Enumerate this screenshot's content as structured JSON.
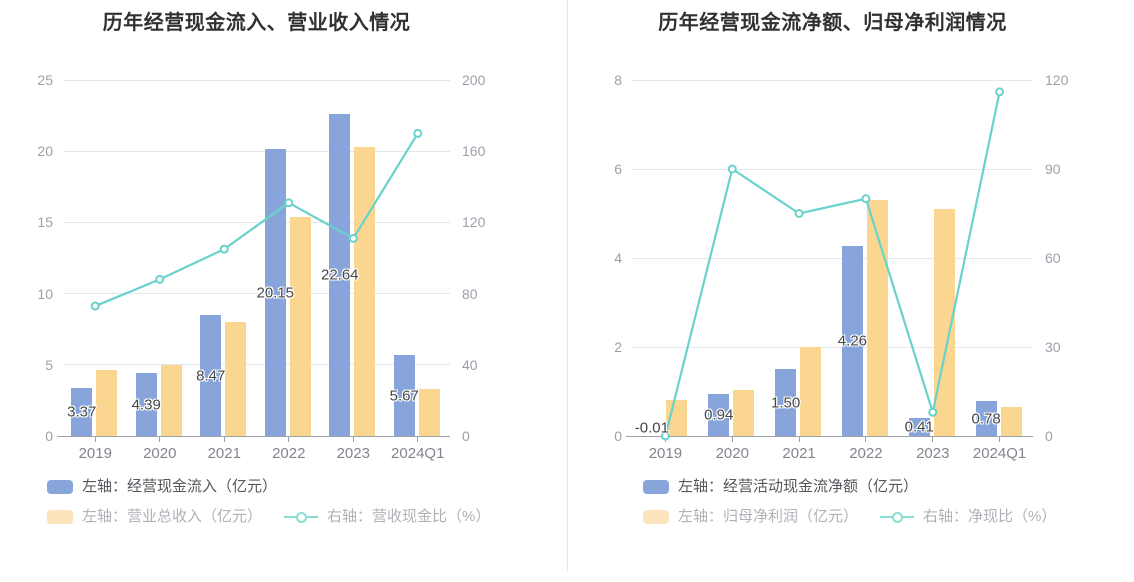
{
  "page": {
    "background": "#ffffff",
    "divider_color": "#e9e9e9"
  },
  "chart_data": [
    {
      "type": "bar+line",
      "title": "历年经营现金流入、营业收入情况",
      "categories": [
        "2019",
        "2020",
        "2021",
        "2022",
        "2023",
        "2024Q1"
      ],
      "left_axis": {
        "min": 0,
        "max": 25,
        "ticks": [
          0,
          5,
          10,
          15,
          20,
          25
        ]
      },
      "right_axis": {
        "min": 0,
        "max": 200,
        "ticks": [
          0,
          40,
          80,
          120,
          160,
          200
        ]
      },
      "grid": true,
      "legend_position": "bottom-left",
      "series": [
        {
          "kind": "bar",
          "axis": "left",
          "name": "左轴：经营现金流入（亿元）",
          "color": "#87a5db",
          "values": [
            3.37,
            4.39,
            8.47,
            20.15,
            22.64,
            5.67
          ],
          "value_labels": [
            "3.37",
            "4.39",
            "8.47",
            "20.15",
            "22.64",
            "5.67"
          ]
        },
        {
          "kind": "bar",
          "axis": "left",
          "name": "左轴：营业总收入（亿元）",
          "color": "#fbd690",
          "legend_color": "#fce4bd",
          "values": [
            4.6,
            5.0,
            8.0,
            15.35,
            20.3,
            3.3
          ]
        },
        {
          "kind": "line",
          "axis": "right",
          "name": "右轴：营收现金比（%）",
          "color": "#68d2cb",
          "legend_color": "#8cdcd6",
          "values": [
            73,
            88,
            105,
            131,
            111,
            170
          ]
        }
      ]
    },
    {
      "type": "bar+line",
      "title": "历年经营现金流净额、归母净利润情况",
      "categories": [
        "2019",
        "2020",
        "2021",
        "2022",
        "2023",
        "2024Q1"
      ],
      "left_axis": {
        "min": 0,
        "max": 8,
        "ticks": [
          0,
          2,
          4,
          6,
          8
        ]
      },
      "right_axis": {
        "min": 0,
        "max": 120,
        "ticks": [
          0,
          30,
          60,
          90,
          120
        ]
      },
      "grid": true,
      "legend_position": "bottom-left",
      "series": [
        {
          "kind": "bar",
          "axis": "left",
          "name": "左轴：经营活动现金流净额（亿元）",
          "color": "#87a5db",
          "values": [
            -0.01,
            0.94,
            1.5,
            4.26,
            0.41,
            0.78
          ],
          "value_labels": [
            "-0.01",
            "0.94",
            "1.50",
            "4.26",
            "0.41",
            "0.78"
          ]
        },
        {
          "kind": "bar",
          "axis": "left",
          "name": "左轴：归母净利润（亿元）",
          "color": "#fbd690",
          "legend_color": "#fce4bd",
          "values": [
            0.8,
            1.03,
            2.0,
            5.3,
            5.1,
            0.66
          ]
        },
        {
          "kind": "line",
          "axis": "right",
          "name": "右轴：净现比（%）",
          "color": "#68d2cb",
          "legend_color": "#8cdcd6",
          "values": [
            0,
            90,
            75,
            80,
            8,
            116
          ]
        }
      ]
    }
  ]
}
